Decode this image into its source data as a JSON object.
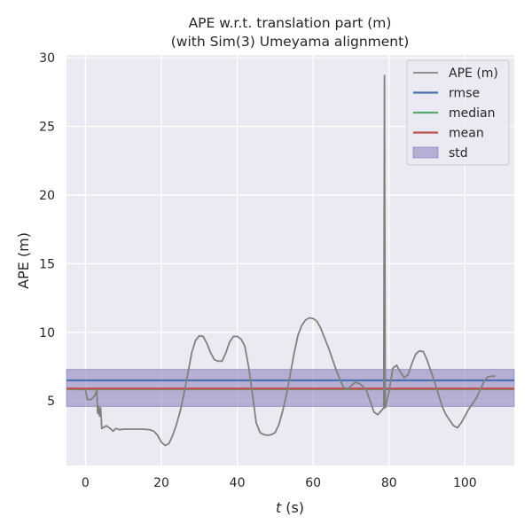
{
  "chart_data": {
    "type": "line",
    "title_line1": "APE w.r.t. translation part (m)",
    "title_line2": "(with Sim(3) Umeyama alignment)",
    "xlabel_italic": "t",
    "xlabel_unit": "(s)",
    "ylabel": "APE (m)",
    "xlim": [
      -5,
      113
    ],
    "ylim": [
      0.3,
      30.2
    ],
    "xticks": [
      0,
      20,
      40,
      60,
      80,
      100
    ],
    "yticks": [
      5,
      10,
      15,
      20,
      25,
      30
    ],
    "grid": true,
    "legend_position": "top-right",
    "background": "#eaeaf2",
    "series": [
      {
        "name": "APE (m)",
        "kind": "line",
        "color": "#808080",
        "points": [
          [
            0,
            5.8
          ],
          [
            0.5,
            5.1
          ],
          [
            1.5,
            5.1
          ],
          [
            2.5,
            5.4
          ],
          [
            3,
            5.8
          ],
          [
            3.2,
            4.1
          ],
          [
            3.5,
            4.6
          ],
          [
            3.7,
            3.9
          ],
          [
            4,
            4.5
          ],
          [
            4.3,
            3.0
          ],
          [
            5,
            3.1
          ],
          [
            5.5,
            3.2
          ],
          [
            6.5,
            3.0
          ],
          [
            7.3,
            2.8
          ],
          [
            8,
            3.0
          ],
          [
            9,
            2.9
          ],
          [
            10,
            2.95
          ],
          [
            12,
            2.95
          ],
          [
            15,
            2.95
          ],
          [
            17,
            2.9
          ],
          [
            18,
            2.8
          ],
          [
            19,
            2.5
          ],
          [
            20,
            2.0
          ],
          [
            21,
            1.75
          ],
          [
            22,
            1.9
          ],
          [
            23,
            2.5
          ],
          [
            24,
            3.3
          ],
          [
            25,
            4.3
          ],
          [
            26,
            5.6
          ],
          [
            27,
            7.0
          ],
          [
            28,
            8.5
          ],
          [
            29,
            9.4
          ],
          [
            30,
            9.75
          ],
          [
            31,
            9.7
          ],
          [
            32,
            9.2
          ],
          [
            33,
            8.5
          ],
          [
            34,
            8.0
          ],
          [
            35,
            7.9
          ],
          [
            36,
            7.9
          ],
          [
            37,
            8.5
          ],
          [
            38,
            9.3
          ],
          [
            39,
            9.7
          ],
          [
            40,
            9.7
          ],
          [
            41,
            9.5
          ],
          [
            42,
            9.0
          ],
          [
            43,
            7.5
          ],
          [
            44,
            5.5
          ],
          [
            45,
            3.4
          ],
          [
            46,
            2.7
          ],
          [
            47,
            2.55
          ],
          [
            48,
            2.5
          ],
          [
            49,
            2.55
          ],
          [
            50,
            2.7
          ],
          [
            51,
            3.3
          ],
          [
            52,
            4.3
          ],
          [
            53,
            5.5
          ],
          [
            54,
            7.0
          ],
          [
            55,
            8.5
          ],
          [
            56,
            9.8
          ],
          [
            57,
            10.5
          ],
          [
            58,
            10.9
          ],
          [
            59,
            11.05
          ],
          [
            60,
            11.0
          ],
          [
            61,
            10.8
          ],
          [
            62,
            10.3
          ],
          [
            63,
            9.6
          ],
          [
            64,
            8.9
          ],
          [
            65,
            8.1
          ],
          [
            66,
            7.3
          ],
          [
            67,
            6.6
          ],
          [
            68,
            6.0
          ],
          [
            69,
            5.85
          ],
          [
            70,
            6.1
          ],
          [
            71,
            6.35
          ],
          [
            72,
            6.3
          ],
          [
            73,
            6.1
          ],
          [
            74,
            5.8
          ],
          [
            75,
            5.0
          ],
          [
            76,
            4.2
          ],
          [
            77,
            4.0
          ],
          [
            78,
            4.3
          ],
          [
            78.6,
            4.5
          ],
          [
            78.8,
            28.7
          ],
          [
            79.0,
            4.5
          ],
          [
            80,
            5.7
          ],
          [
            81,
            7.4
          ],
          [
            82,
            7.6
          ],
          [
            83,
            7.1
          ],
          [
            84,
            6.7
          ],
          [
            85,
            6.9
          ],
          [
            86,
            7.7
          ],
          [
            87,
            8.4
          ],
          [
            88,
            8.65
          ],
          [
            89,
            8.6
          ],
          [
            90,
            8.0
          ],
          [
            91,
            7.2
          ],
          [
            92,
            6.4
          ],
          [
            93,
            5.5
          ],
          [
            94,
            4.6
          ],
          [
            95,
            4.0
          ],
          [
            96,
            3.6
          ],
          [
            97,
            3.2
          ],
          [
            98,
            3.05
          ],
          [
            99,
            3.4
          ],
          [
            100,
            3.9
          ],
          [
            101,
            4.4
          ],
          [
            102,
            4.8
          ],
          [
            103,
            5.2
          ],
          [
            104,
            5.8
          ],
          [
            105,
            6.4
          ],
          [
            106,
            6.75
          ],
          [
            107,
            6.8
          ],
          [
            108,
            6.8
          ]
        ]
      },
      {
        "name": "rmse",
        "kind": "hline",
        "value": 6.5,
        "color": "#4c72b0"
      },
      {
        "name": "median",
        "kind": "hline",
        "value": 5.85,
        "color": "#55a868"
      },
      {
        "name": "mean",
        "kind": "hline",
        "value": 5.9,
        "color": "#c44e52"
      },
      {
        "name": "std",
        "kind": "band",
        "range": [
          4.6,
          7.3
        ],
        "color": "#8172b3",
        "opacity": 0.5
      }
    ]
  }
}
